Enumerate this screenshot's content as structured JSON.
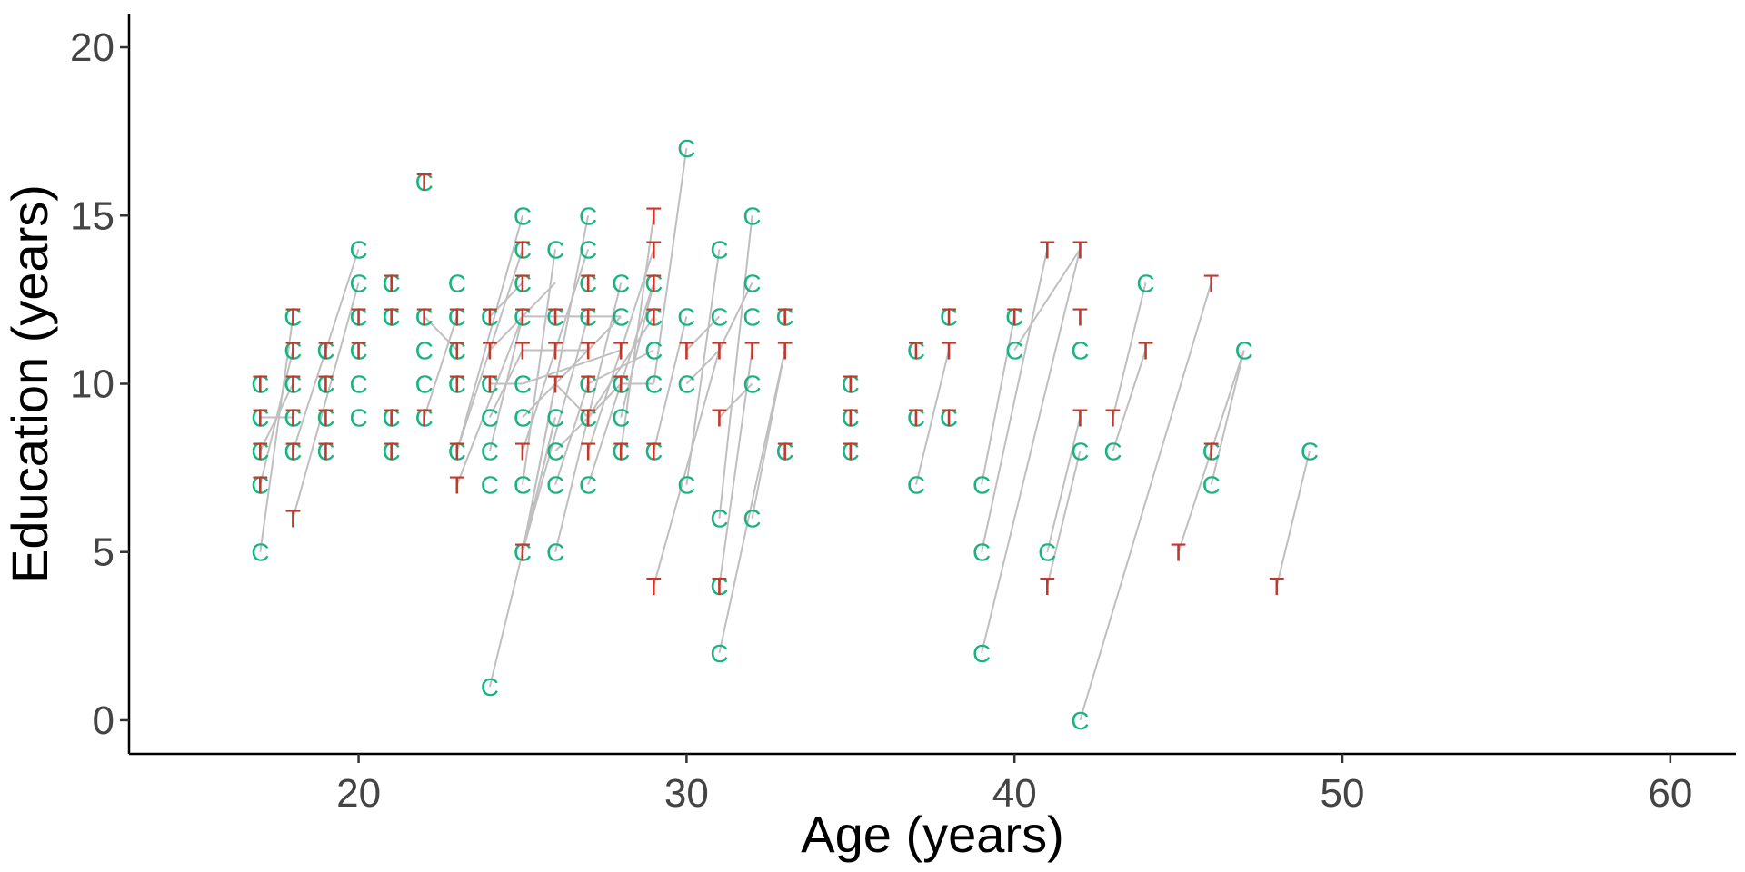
{
  "chart_data": {
    "type": "scatter",
    "title": "",
    "xlabel": "Age (years)",
    "ylabel": "Education (years)",
    "xlim": [
      13,
      62
    ],
    "ylim": [
      -1,
      21
    ],
    "xticks": [
      20,
      30,
      40,
      50,
      60
    ],
    "yticks": [
      0,
      5,
      10,
      15,
      20
    ],
    "grid": false,
    "legend": "none",
    "marker_labels": {
      "C": "C",
      "T": "T"
    },
    "colors": {
      "C": "#1AB37F",
      "T": "#C0392B",
      "line": "#BFBFBF",
      "axis": "#000000"
    },
    "series": [
      {
        "key": "C",
        "points": [
          [
            17,
            5
          ],
          [
            17,
            7
          ],
          [
            17,
            8
          ],
          [
            17,
            9
          ],
          [
            17,
            10
          ],
          [
            18,
            8
          ],
          [
            18,
            9
          ],
          [
            18,
            10
          ],
          [
            18,
            11
          ],
          [
            18,
            12
          ],
          [
            19,
            8
          ],
          [
            19,
            9
          ],
          [
            19,
            10
          ],
          [
            19,
            11
          ],
          [
            20,
            9
          ],
          [
            20,
            10
          ],
          [
            20,
            11
          ],
          [
            20,
            12
          ],
          [
            20,
            13
          ],
          [
            20,
            14
          ],
          [
            21,
            8
          ],
          [
            21,
            9
          ],
          [
            21,
            12
          ],
          [
            21,
            13
          ],
          [
            22,
            9
          ],
          [
            22,
            10
          ],
          [
            22,
            11
          ],
          [
            22,
            12
          ],
          [
            22,
            16
          ],
          [
            23,
            8
          ],
          [
            23,
            10
          ],
          [
            23,
            11
          ],
          [
            23,
            12
          ],
          [
            23,
            13
          ],
          [
            24,
            1
          ],
          [
            24,
            7
          ],
          [
            24,
            8
          ],
          [
            24,
            9
          ],
          [
            24,
            10
          ],
          [
            24,
            12
          ],
          [
            25,
            5
          ],
          [
            25,
            7
          ],
          [
            25,
            9
          ],
          [
            25,
            10
          ],
          [
            25,
            12
          ],
          [
            25,
            13
          ],
          [
            25,
            14
          ],
          [
            25,
            15
          ],
          [
            26,
            5
          ],
          [
            26,
            7
          ],
          [
            26,
            8
          ],
          [
            26,
            9
          ],
          [
            26,
            12
          ],
          [
            26,
            14
          ],
          [
            27,
            7
          ],
          [
            27,
            9
          ],
          [
            27,
            10
          ],
          [
            27,
            12
          ],
          [
            27,
            13
          ],
          [
            27,
            14
          ],
          [
            27,
            15
          ],
          [
            28,
            8
          ],
          [
            28,
            9
          ],
          [
            28,
            10
          ],
          [
            28,
            12
          ],
          [
            28,
            13
          ],
          [
            29,
            8
          ],
          [
            29,
            10
          ],
          [
            29,
            11
          ],
          [
            29,
            12
          ],
          [
            29,
            13
          ],
          [
            30,
            7
          ],
          [
            30,
            10
          ],
          [
            30,
            12
          ],
          [
            30,
            17
          ],
          [
            31,
            2
          ],
          [
            31,
            4
          ],
          [
            31,
            6
          ],
          [
            31,
            12
          ],
          [
            31,
            14
          ],
          [
            32,
            6
          ],
          [
            32,
            10
          ],
          [
            32,
            12
          ],
          [
            32,
            13
          ],
          [
            32,
            15
          ],
          [
            33,
            8
          ],
          [
            33,
            12
          ],
          [
            35,
            8
          ],
          [
            35,
            9
          ],
          [
            35,
            10
          ],
          [
            37,
            7
          ],
          [
            37,
            9
          ],
          [
            37,
            11
          ],
          [
            38,
            9
          ],
          [
            38,
            12
          ],
          [
            39,
            2
          ],
          [
            39,
            5
          ],
          [
            39,
            7
          ],
          [
            40,
            11
          ],
          [
            40,
            12
          ],
          [
            41,
            5
          ],
          [
            42,
            0
          ],
          [
            42,
            8
          ],
          [
            42,
            11
          ],
          [
            43,
            8
          ],
          [
            44,
            13
          ],
          [
            46,
            7
          ],
          [
            46,
            8
          ],
          [
            47,
            11
          ],
          [
            49,
            8
          ]
        ]
      },
      {
        "key": "T",
        "points": [
          [
            17,
            7
          ],
          [
            17,
            8
          ],
          [
            17,
            9
          ],
          [
            17,
            10
          ],
          [
            18,
            6
          ],
          [
            18,
            8
          ],
          [
            18,
            9
          ],
          [
            18,
            10
          ],
          [
            18,
            11
          ],
          [
            18,
            12
          ],
          [
            19,
            8
          ],
          [
            19,
            9
          ],
          [
            19,
            10
          ],
          [
            19,
            11
          ],
          [
            20,
            11
          ],
          [
            20,
            12
          ],
          [
            21,
            8
          ],
          [
            21,
            9
          ],
          [
            21,
            12
          ],
          [
            21,
            13
          ],
          [
            22,
            9
          ],
          [
            22,
            12
          ],
          [
            22,
            16
          ],
          [
            23,
            7
          ],
          [
            23,
            8
          ],
          [
            23,
            10
          ],
          [
            23,
            11
          ],
          [
            23,
            12
          ],
          [
            24,
            10
          ],
          [
            24,
            11
          ],
          [
            24,
            12
          ],
          [
            25,
            5
          ],
          [
            25,
            8
          ],
          [
            25,
            11
          ],
          [
            25,
            12
          ],
          [
            25,
            13
          ],
          [
            25,
            14
          ],
          [
            26,
            10
          ],
          [
            26,
            11
          ],
          [
            26,
            12
          ],
          [
            27,
            8
          ],
          [
            27,
            9
          ],
          [
            27,
            10
          ],
          [
            27,
            11
          ],
          [
            27,
            12
          ],
          [
            27,
            13
          ],
          [
            28,
            8
          ],
          [
            28,
            10
          ],
          [
            28,
            11
          ],
          [
            29,
            4
          ],
          [
            29,
            8
          ],
          [
            29,
            12
          ],
          [
            29,
            13
          ],
          [
            29,
            14
          ],
          [
            29,
            15
          ],
          [
            30,
            11
          ],
          [
            31,
            4
          ],
          [
            31,
            9
          ],
          [
            31,
            11
          ],
          [
            32,
            11
          ],
          [
            33,
            8
          ],
          [
            33,
            11
          ],
          [
            33,
            12
          ],
          [
            35,
            8
          ],
          [
            35,
            9
          ],
          [
            35,
            10
          ],
          [
            37,
            9
          ],
          [
            37,
            11
          ],
          [
            38,
            9
          ],
          [
            38,
            11
          ],
          [
            38,
            12
          ],
          [
            40,
            12
          ],
          [
            41,
            4
          ],
          [
            41,
            14
          ],
          [
            42,
            9
          ],
          [
            42,
            12
          ],
          [
            42,
            14
          ],
          [
            43,
            9
          ],
          [
            44,
            11
          ],
          [
            45,
            5
          ],
          [
            46,
            8
          ],
          [
            46,
            13
          ],
          [
            48,
            4
          ]
        ]
      }
    ],
    "links": [
      [
        [
          17,
          5
        ],
        [
          18,
          12
        ]
      ],
      [
        [
          17,
          7
        ],
        [
          18,
          11
        ]
      ],
      [
        [
          17,
          8
        ],
        [
          18,
          10
        ]
      ],
      [
        [
          17,
          9
        ],
        [
          18,
          9
        ]
      ],
      [
        [
          18,
          6
        ],
        [
          20,
          13
        ]
      ],
      [
        [
          18,
          8
        ],
        [
          20,
          14
        ]
      ],
      [
        [
          22,
          9
        ],
        [
          23,
          12
        ]
      ],
      [
        [
          22,
          12
        ],
        [
          23,
          11
        ]
      ],
      [
        [
          23,
          7
        ],
        [
          25,
          12
        ]
      ],
      [
        [
          23,
          8
        ],
        [
          25,
          14
        ]
      ],
      [
        [
          23,
          8
        ],
        [
          25,
          15
        ]
      ],
      [
        [
          24,
          1
        ],
        [
          26,
          9
        ]
      ],
      [
        [
          24,
          8
        ],
        [
          25,
          12
        ]
      ],
      [
        [
          24,
          9
        ],
        [
          25,
          11
        ]
      ],
      [
        [
          24,
          10
        ],
        [
          25,
          10
        ]
      ],
      [
        [
          24,
          11
        ],
        [
          26,
          13
        ]
      ],
      [
        [
          24,
          12
        ],
        [
          25,
          13
        ]
      ],
      [
        [
          25,
          5
        ],
        [
          26,
          9
        ]
      ],
      [
        [
          25,
          5
        ],
        [
          26,
          10
        ]
      ],
      [
        [
          25,
          5
        ],
        [
          27,
          12
        ]
      ],
      [
        [
          25,
          5
        ],
        [
          27,
          15
        ]
      ],
      [
        [
          25,
          7
        ],
        [
          26,
          14
        ]
      ],
      [
        [
          25,
          8
        ],
        [
          27,
          14
        ]
      ],
      [
        [
          25,
          9
        ],
        [
          28,
          12
        ]
      ],
      [
        [
          25,
          10
        ],
        [
          28,
          11
        ]
      ],
      [
        [
          25,
          11
        ],
        [
          27,
          11
        ]
      ],
      [
        [
          25,
          12
        ],
        [
          26,
          12
        ]
      ],
      [
        [
          26,
          5
        ],
        [
          28,
          13
        ]
      ],
      [
        [
          26,
          7
        ],
        [
          27,
          10
        ]
      ],
      [
        [
          26,
          8
        ],
        [
          28,
          10
        ]
      ],
      [
        [
          26,
          10
        ],
        [
          27,
          9
        ]
      ],
      [
        [
          26,
          12
        ],
        [
          27,
          12
        ]
      ],
      [
        [
          27,
          7
        ],
        [
          29,
          13
        ]
      ],
      [
        [
          27,
          8
        ],
        [
          29,
          14
        ]
      ],
      [
        [
          27,
          9
        ],
        [
          29,
          12
        ]
      ],
      [
        [
          27,
          10
        ],
        [
          29,
          11
        ]
      ],
      [
        [
          27,
          12
        ],
        [
          28,
          12
        ]
      ],
      [
        [
          28,
          8
        ],
        [
          29,
          15
        ]
      ],
      [
        [
          28,
          9
        ],
        [
          29,
          13
        ]
      ],
      [
        [
          28,
          10
        ],
        [
          29,
          10
        ]
      ],
      [
        [
          29,
          4
        ],
        [
          31,
          11
        ]
      ],
      [
        [
          29,
          8
        ],
        [
          30,
          12
        ]
      ],
      [
        [
          29,
          10
        ],
        [
          30,
          17
        ]
      ],
      [
        [
          30,
          7
        ],
        [
          31,
          14
        ]
      ],
      [
        [
          30,
          10
        ],
        [
          31,
          11
        ]
      ],
      [
        [
          30,
          11
        ],
        [
          31,
          12
        ]
      ],
      [
        [
          31,
          2
        ],
        [
          33,
          11
        ]
      ],
      [
        [
          31,
          4
        ],
        [
          32,
          11
        ]
      ],
      [
        [
          31,
          6
        ],
        [
          32,
          15
        ]
      ],
      [
        [
          31,
          9
        ],
        [
          32,
          10
        ]
      ],
      [
        [
          31,
          11
        ],
        [
          32,
          13
        ]
      ],
      [
        [
          32,
          6
        ],
        [
          33,
          11
        ]
      ],
      [
        [
          37,
          7
        ],
        [
          38,
          11
        ]
      ],
      [
        [
          39,
          2
        ],
        [
          42,
          14
        ]
      ],
      [
        [
          39,
          5
        ],
        [
          41,
          14
        ]
      ],
      [
        [
          39,
          7
        ],
        [
          40,
          12
        ]
      ],
      [
        [
          40,
          11
        ],
        [
          42,
          14
        ]
      ],
      [
        [
          41,
          5
        ],
        [
          42,
          9
        ]
      ],
      [
        [
          41,
          4
        ],
        [
          42,
          8
        ]
      ],
      [
        [
          42,
          0
        ],
        [
          46,
          13
        ]
      ],
      [
        [
          43,
          9
        ],
        [
          44,
          13
        ]
      ],
      [
        [
          43,
          8
        ],
        [
          44,
          11
        ]
      ],
      [
        [
          45,
          5
        ],
        [
          47,
          11
        ]
      ],
      [
        [
          46,
          7
        ],
        [
          47,
          11
        ]
      ],
      [
        [
          48,
          4
        ],
        [
          49,
          8
        ]
      ]
    ]
  }
}
